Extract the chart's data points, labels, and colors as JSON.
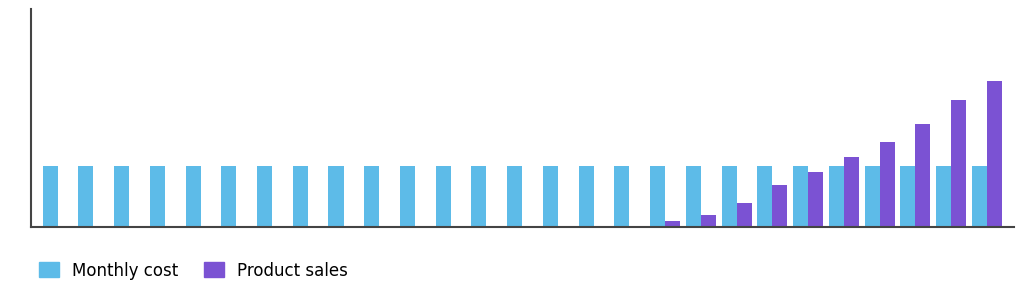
{
  "monthly_cost": [
    5,
    5,
    5,
    5,
    5,
    5,
    5,
    5,
    5,
    5,
    5,
    5,
    5,
    5,
    5,
    5,
    5,
    5,
    5,
    5,
    5,
    5,
    5,
    5,
    5,
    5,
    5
  ],
  "product_sales": [
    0,
    0,
    0,
    0,
    0,
    0,
    0,
    0,
    0,
    0,
    0,
    0,
    0,
    0,
    0,
    0,
    0,
    0.5,
    1.0,
    2.0,
    3.5,
    4.5,
    5.8,
    7.0,
    8.5,
    10.5,
    12.0
  ],
  "cost_color": "#5dbbe8",
  "sales_color": "#7B52D3",
  "background_color": "#ffffff",
  "ylim": [
    0,
    18
  ],
  "bar_width": 0.42,
  "legend_labels": [
    "Monthly cost",
    "Product sales"
  ],
  "legend_fontsize": 12,
  "spine_color": "#444444"
}
